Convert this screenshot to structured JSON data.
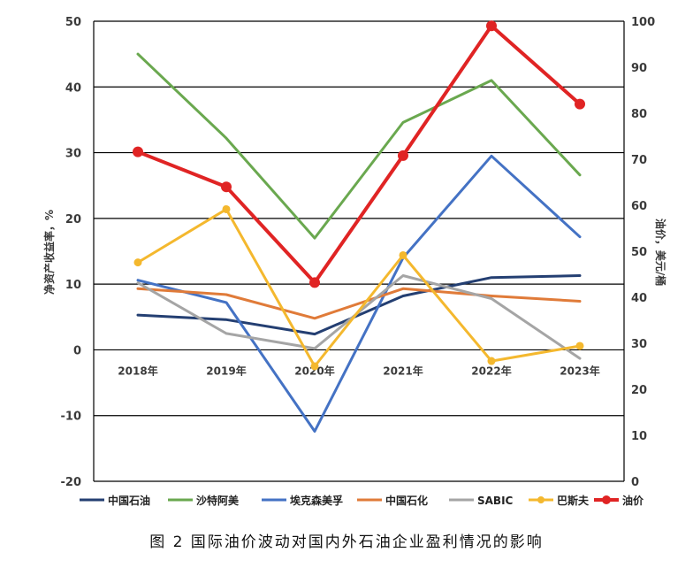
{
  "caption": "图 2 国际油价波动对国内外石油企业盈利情况的影响",
  "chart_data": {
    "type": "line",
    "categories": [
      "2018年",
      "2019年",
      "2020年",
      "2021年",
      "2022年",
      "2023年"
    ],
    "left_axis": {
      "label": "净资产收益率，%",
      "ticks": [
        50,
        40,
        30,
        20,
        10,
        0,
        -10,
        -20
      ],
      "range": [
        -20,
        50
      ]
    },
    "right_axis": {
      "label": "油价，美元/桶",
      "ticks": [
        100,
        90,
        80,
        70,
        60,
        50,
        40,
        30,
        20,
        10,
        0
      ],
      "range": [
        0,
        100
      ]
    },
    "grid": "horizontal",
    "legend_position": "bottom",
    "series": [
      {
        "name": "中国石油",
        "axis": "left",
        "color": "#243f72",
        "marker": false,
        "values": [
          5.3,
          4.6,
          2.4,
          8.2,
          11.0,
          11.3
        ]
      },
      {
        "name": "沙特阿美",
        "axis": "left",
        "color": "#6aa84f",
        "marker": false,
        "values": [
          45.0,
          32.2,
          17.0,
          34.6,
          41.0,
          26.6
        ]
      },
      {
        "name": "埃克森美孚",
        "axis": "left",
        "color": "#4472c4",
        "marker": false,
        "values": [
          10.6,
          7.2,
          -12.4,
          14.0,
          29.5,
          17.2
        ]
      },
      {
        "name": "中国石化",
        "axis": "left",
        "color": "#e07b39",
        "marker": false,
        "values": [
          9.3,
          8.4,
          4.8,
          9.3,
          8.2,
          7.4
        ]
      },
      {
        "name": "SABIC",
        "axis": "left",
        "color": "#a5a5a5",
        "marker": false,
        "values": [
          10.2,
          2.5,
          0.2,
          11.3,
          7.8,
          -1.3
        ]
      },
      {
        "name": "巴斯夫",
        "axis": "left",
        "color": "#f4b82e",
        "marker": true,
        "values": [
          13.3,
          21.4,
          -2.5,
          14.4,
          -1.7,
          0.6
        ]
      },
      {
        "name": "油价",
        "axis": "right",
        "color": "#e02424",
        "marker": true,
        "values": [
          71.6,
          64.0,
          43.2,
          70.8,
          99.0,
          82.0
        ]
      }
    ]
  }
}
